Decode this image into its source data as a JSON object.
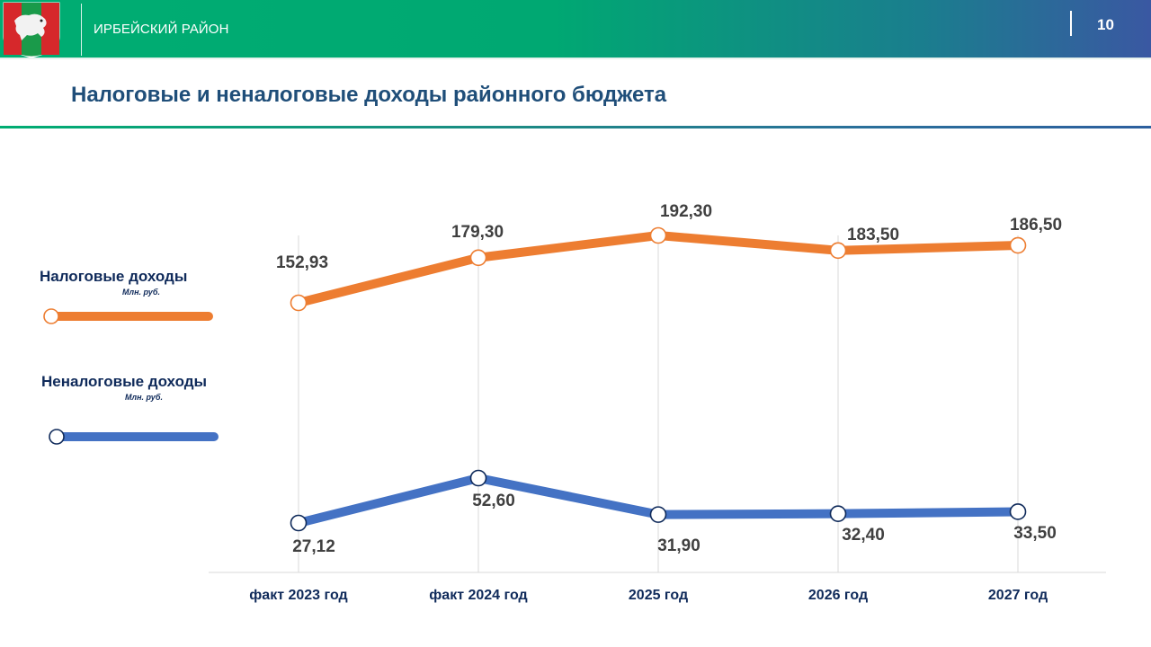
{
  "header": {
    "org_name": "ИРБЕЙСКИЙ РАЙОН",
    "page_number": "10",
    "emblem_icon": "coat-of-arms-icon"
  },
  "title": "Налоговые и неналоговые доходы районного бюджета",
  "colors": {
    "tax": "#ed7d31",
    "nontax": "#4472c4",
    "marker_stroke_nontax": "#0f2a5a",
    "title": "#1f4e79"
  },
  "legend": {
    "tax": {
      "label": "Налоговые доходы",
      "unit": "Млн. руб."
    },
    "nontax": {
      "label": "Неналоговые доходы",
      "unit": "Млн. руб."
    }
  },
  "chart_data": {
    "type": "line",
    "categories": [
      "факт  2023 год",
      "факт  2024 год",
      "2025 год",
      "2026 год",
      "2027 год"
    ],
    "series": [
      {
        "name": "Налоговые доходы",
        "unit": "Млн. руб.",
        "values": [
          152.93,
          179.3,
          192.3,
          183.5,
          186.5
        ],
        "labels": [
          "152,93",
          "179,30",
          "192,30",
          "183,50",
          "186,50"
        ]
      },
      {
        "name": "Неналоговые доходы",
        "unit": "Млн. руб.",
        "values": [
          27.12,
          52.6,
          31.9,
          32.4,
          33.5
        ],
        "labels": [
          "27,12",
          "52,60",
          "31,90",
          "32,40",
          "33,50"
        ]
      }
    ],
    "xlabel": "",
    "ylabel": "",
    "grid": "vertical"
  }
}
